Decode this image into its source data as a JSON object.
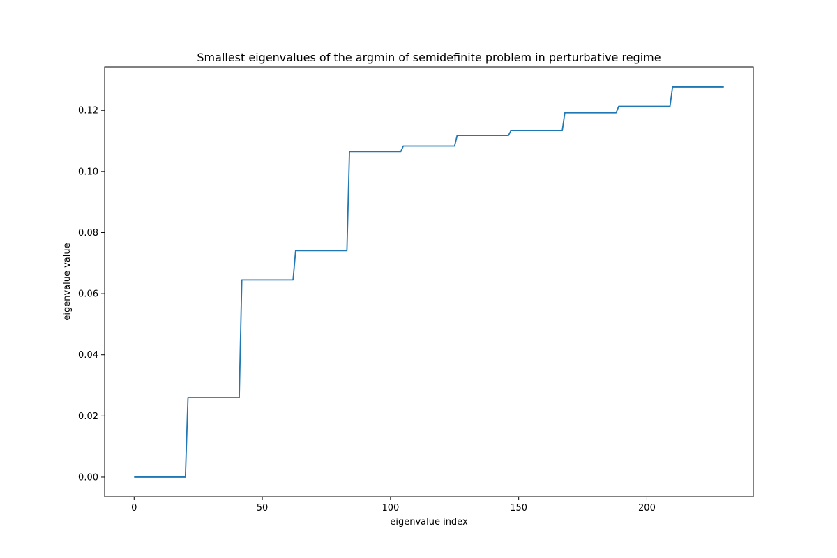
{
  "chart_data": {
    "type": "line",
    "title": "Smallest eigenvalues of the argmin of semidefinite problem in perturbative regime",
    "xlabel": "eigenvalue index",
    "ylabel": "eigenvalue value",
    "xlim": [
      -11.5,
      241.5
    ],
    "ylim": [
      -0.0064,
      0.1342
    ],
    "xticks": [
      0,
      50,
      100,
      150,
      200
    ],
    "xtick_labels": [
      "0",
      "50",
      "100",
      "150",
      "200"
    ],
    "yticks": [
      0.0,
      0.02,
      0.04,
      0.06,
      0.08,
      0.1,
      0.12
    ],
    "ytick_labels": [
      "0.00",
      "0.02",
      "0.04",
      "0.06",
      "0.08",
      "0.10",
      "0.12"
    ],
    "grid": false,
    "series": [
      {
        "color": "#1f77b4",
        "plateaus": [
          {
            "x_start": 0,
            "x_end": 20,
            "value": 0.0
          },
          {
            "x_start": 21,
            "x_end": 41,
            "value": 0.026
          },
          {
            "x_start": 42,
            "x_end": 62,
            "value": 0.0645
          },
          {
            "x_start": 63,
            "x_end": 83,
            "value": 0.0741
          },
          {
            "x_start": 84,
            "x_end": 104,
            "value": 0.1065
          },
          {
            "x_start": 105,
            "x_end": 125,
            "value": 0.1083
          },
          {
            "x_start": 126,
            "x_end": 146,
            "value": 0.1118
          },
          {
            "x_start": 147,
            "x_end": 167,
            "value": 0.1134
          },
          {
            "x_start": 168,
            "x_end": 188,
            "value": 0.1192
          },
          {
            "x_start": 189,
            "x_end": 209,
            "value": 0.1213
          },
          {
            "x_start": 210,
            "x_end": 230,
            "value": 0.1276
          }
        ]
      }
    ]
  }
}
